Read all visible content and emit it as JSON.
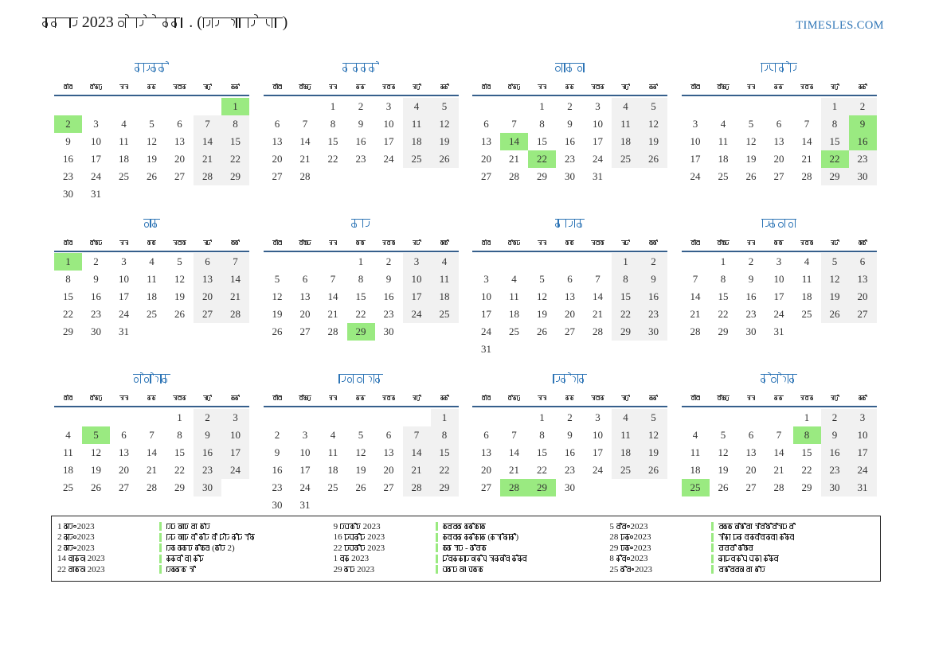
{
  "header": {
    "title": "वर्ष 2023 कैलेंडर।. (अल्बानिया)",
    "site": "TIMESLES.COM"
  },
  "calendar": {
    "dow": [
      "सोम",
      "मंगल",
      "बुध",
      "गुरु",
      "शुक्र",
      "शनि",
      "रवि"
    ],
    "months": [
      {
        "id": "january",
        "name": "जनवरी",
        "start": 6,
        "days": 31,
        "holidays": [
          1,
          2
        ]
      },
      {
        "id": "february",
        "name": "फ़रवरी",
        "start": 2,
        "days": 28,
        "holidays": []
      },
      {
        "id": "march",
        "name": "मार्च",
        "start": 2,
        "days": 31,
        "holidays": [
          14,
          22
        ]
      },
      {
        "id": "april",
        "name": "अप्रैल",
        "start": 5,
        "days": 30,
        "holidays": [
          9,
          16,
          22
        ]
      },
      {
        "id": "may",
        "name": "मई",
        "start": 0,
        "days": 31,
        "holidays": [
          1
        ]
      },
      {
        "id": "june",
        "name": "जून",
        "start": 3,
        "days": 30,
        "holidays": [
          29
        ]
      },
      {
        "id": "july",
        "name": "जुलाई",
        "start": 5,
        "days": 31,
        "holidays": []
      },
      {
        "id": "august",
        "name": "अगस्त",
        "start": 1,
        "days": 31,
        "holidays": []
      },
      {
        "id": "september",
        "name": "सितंबर",
        "start": 4,
        "days": 30,
        "holidays": [
          5
        ]
      },
      {
        "id": "october",
        "name": "अक्तूबर",
        "start": 6,
        "days": 31,
        "holidays": []
      },
      {
        "id": "november",
        "name": "नवंबर",
        "start": 2,
        "days": 30,
        "holidays": [
          28,
          29
        ]
      },
      {
        "id": "december",
        "name": "दिसंबर",
        "start": 4,
        "days": 31,
        "holidays": [
          8,
          25
        ]
      }
    ]
  },
  "legend": {
    "columns": [
      [
        {
          "date": "1 जन॰ 2023",
          "name": "नए साल का दिन"
        },
        {
          "date": "2 जन॰ 2023",
          "name": "नए साल के दिन के लिए दिन बंद"
        },
        {
          "date": "2 जन॰ 2023",
          "name": "नव वर्ष दिवस (दिन 2)"
        },
        {
          "date": "14 मार्च 2023",
          "name": "गर्मी का दिन"
        },
        {
          "date": "22 मार्च 2023",
          "name": "नॉरूज़ बे"
        }
      ],
      [
        {
          "date": "9 अप्रैल 2023",
          "name": "ईस्टर रविवार"
        },
        {
          "date": "16 अप्रैल 2023",
          "name": "ईस्टर रविवार (रूढ़िवादी)"
        },
        {
          "date": "22 अप्रैल 2023",
          "name": "ईद उल - फित्र"
        },
        {
          "date": "1 मई 2023",
          "name": "अंतर्राष्ट्रीय श्रमिक दिवस"
        },
        {
          "date": "29 जून 2023",
          "name": "यज्ञ का पर्व"
        }
      ],
      [
        {
          "date": "5 सित॰ 2023",
          "name": "मदर टेरेसा बीटिफिकेशन के"
        },
        {
          "date": "28 नव॰ 2023",
          "name": "झंडा और स्वतंत्रता दिवस"
        },
        {
          "date": "29 नव॰ 2023",
          "name": "मुक्ति दिवस"
        },
        {
          "date": "8 दिस॰ 2023",
          "name": "राष्ट्रीय युवा दिवस"
        },
        {
          "date": "25 दिस॰ 2023",
          "name": "क्रिसमस का दिन"
        }
      ]
    ]
  },
  "colors": {
    "holiday_green": "#9aea81",
    "weekend_gray": "#f1f1f1",
    "header_line_blue": "#365f8c",
    "title_blue": "#2e75b6"
  }
}
